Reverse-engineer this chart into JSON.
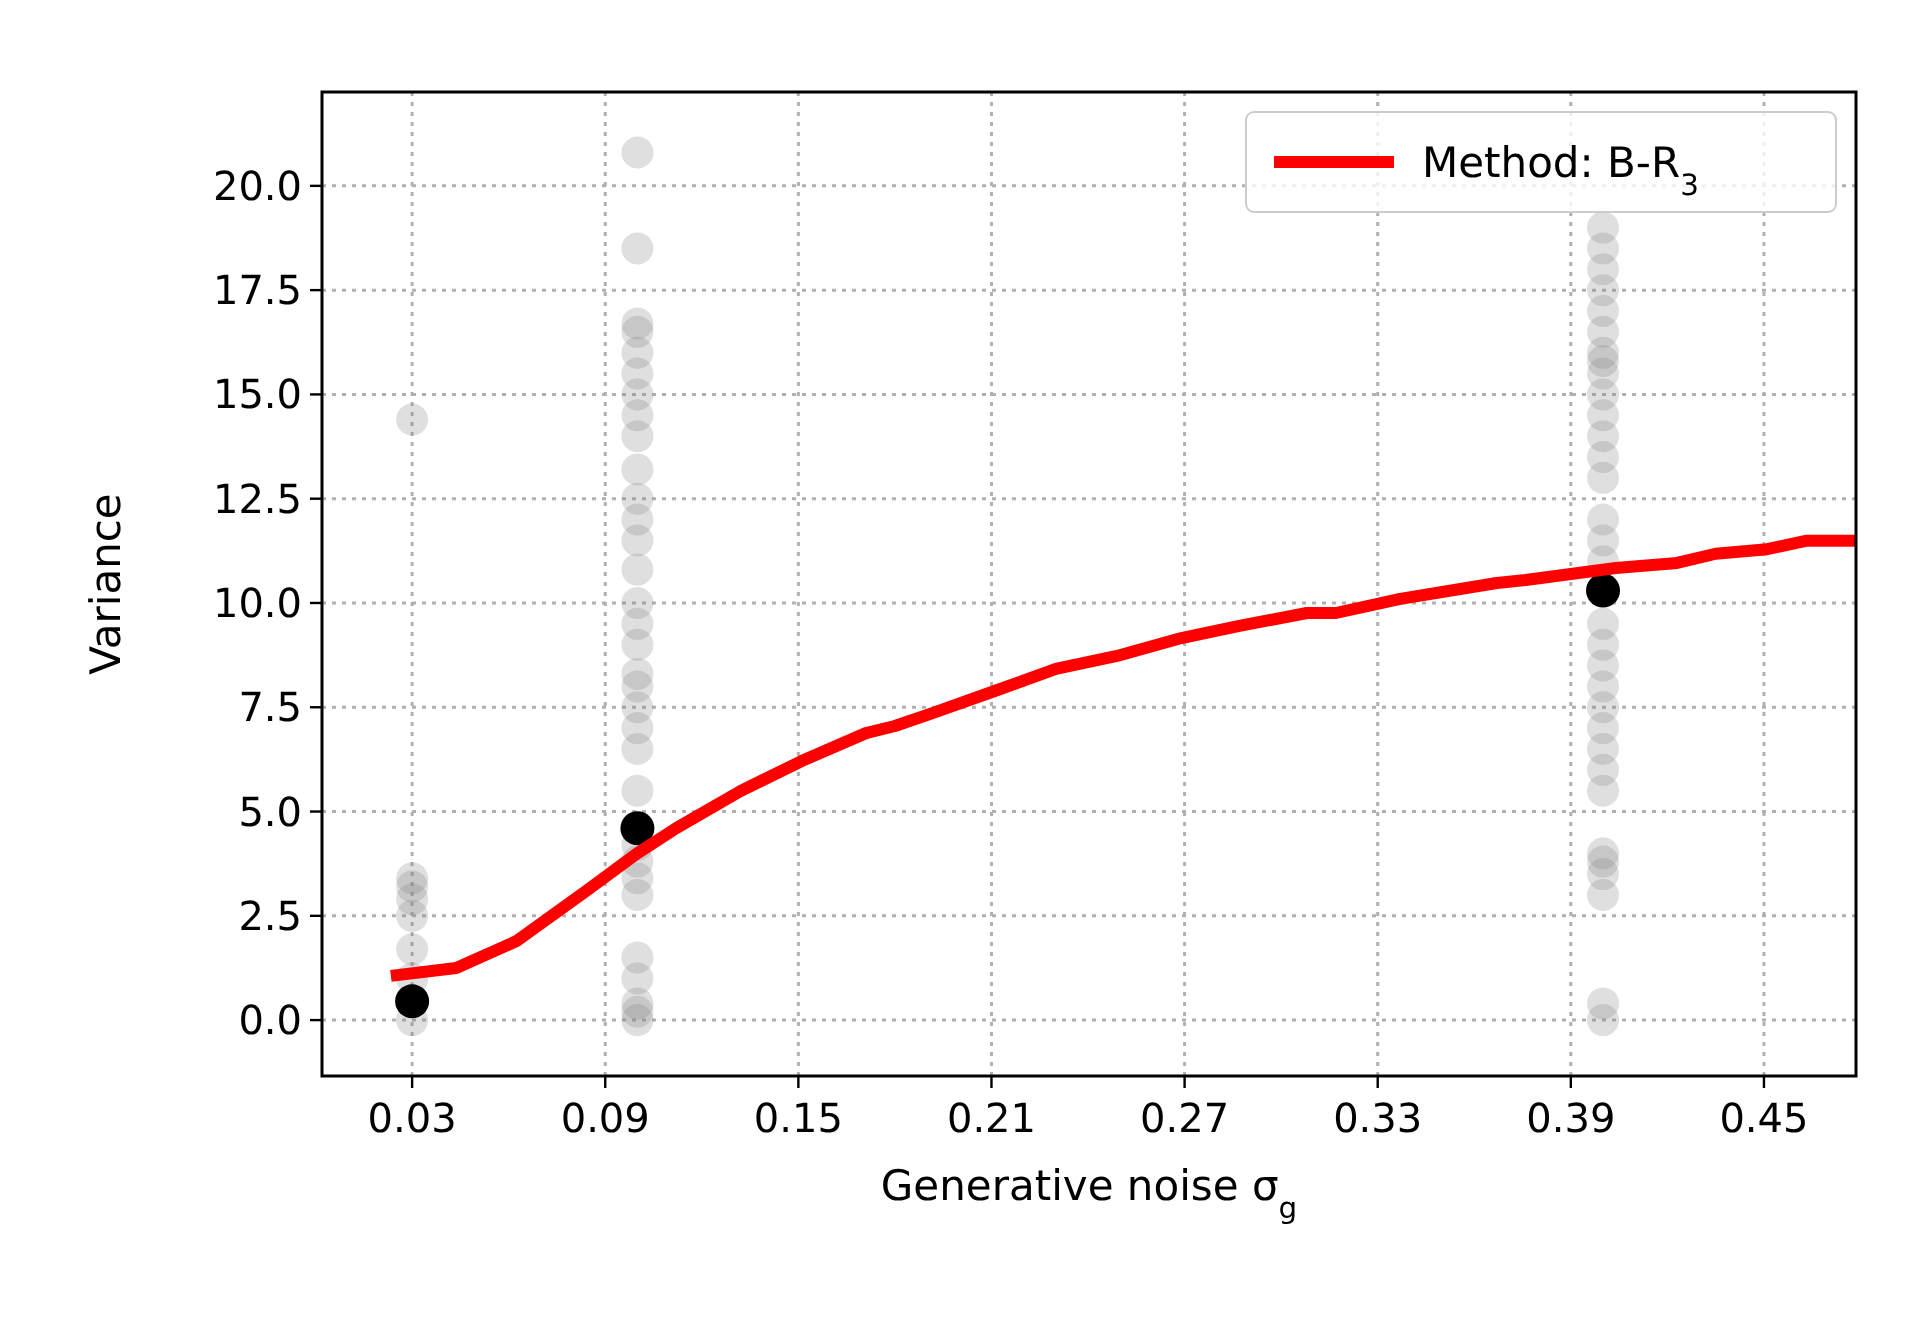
{
  "chart_data": {
    "type": "scatter",
    "xlabel": "Generative noise σ$_{g}$",
    "ylabel": "Variance",
    "xlim": [
      0.002,
      0.4786
    ],
    "ylim": [
      -1.34,
      22.25
    ],
    "xticks": [
      0.03,
      0.09,
      0.15,
      0.21,
      0.27,
      0.33,
      0.39,
      0.45
    ],
    "yticks": [
      {
        "value": 0,
        "label": "0.0"
      },
      {
        "value": 2.5,
        "label": "2.5"
      },
      {
        "value": 5,
        "label": "5.0"
      },
      {
        "value": 7.5,
        "label": "7.5"
      },
      {
        "value": 10,
        "label": "10.0"
      },
      {
        "value": 12.5,
        "label": "12.5"
      },
      {
        "value": 15,
        "label": "15.0"
      },
      {
        "value": 17.5,
        "label": "17.5"
      },
      {
        "value": 20,
        "label": "20.0"
      }
    ],
    "grid": true,
    "legend": "top right",
    "marker": "circle",
    "series": [
      {
        "color": "#808080",
        "x": [
          0.03,
          0.03,
          0.03,
          0.03,
          0.03,
          0.03,
          0.03,
          0.03,
          0.1,
          0.1,
          0.1,
          0.1,
          0.1,
          0.1,
          0.1,
          0.1,
          0.1,
          0.1,
          0.1,
          0.1,
          0.1,
          0.1,
          0.1,
          0.1,
          0.1,
          0.1,
          0.1,
          0.1,
          0.1,
          0.1,
          0.1,
          0.1,
          0.1,
          0.1,
          0.1,
          0.1,
          0.1,
          0.1,
          0.1,
          0.1,
          0.4,
          0.4,
          0.4,
          0.4,
          0.4,
          0.4,
          0.4,
          0.4,
          0.4,
          0.4,
          0.4,
          0.4,
          0.4,
          0.4,
          0.4,
          0.4,
          0.4,
          0.4,
          0.4,
          0.4,
          0.4,
          0.4,
          0.4,
          0.4,
          0.4,
          0.4,
          0.4,
          0.4,
          0.4,
          0.4,
          0.4,
          0.4
        ],
        "values": [
          0,
          1,
          1.7,
          2.5,
          2.9,
          3.2,
          3.4,
          14.4,
          0,
          0.2,
          0.4,
          1,
          1.5,
          3,
          3.4,
          3.8,
          4.2,
          5.5,
          6.5,
          7,
          7.5,
          8,
          8.3,
          9,
          9.5,
          10,
          10.8,
          11.5,
          12,
          12.5,
          13.2,
          14,
          14.5,
          15,
          15.5,
          16,
          16.5,
          16.7,
          18.5,
          20.8,
          0,
          0.4,
          3,
          3.5,
          3.8,
          4,
          5.5,
          6,
          6.5,
          7,
          7.5,
          8,
          8.5,
          9,
          9.5,
          11,
          11.5,
          12,
          13,
          13.5,
          14,
          14.5,
          15,
          15.5,
          16,
          16.5,
          17,
          17.5,
          18,
          18.5,
          19,
          15.8
        ]
      },
      {
        "color": "#000000",
        "x": [
          0.03,
          0.1,
          0.4
        ],
        "values": [
          0.45,
          4.6,
          10.3
        ]
      },
      {
        "type": "line",
        "name": "Method: B-R$_{3}$",
        "color": "#ff0000",
        "marker": "none",
        "line_style": "solid",
        "x": [
          0.0234,
          0.0437,
          0.0623,
          0.084,
          0.0996,
          0.112,
          0.132,
          0.151,
          0.171,
          0.18,
          0.191,
          0.211,
          0.23,
          0.249,
          0.269,
          0.287,
          0.308,
          0.317,
          0.337,
          0.367,
          0.376,
          0.404,
          0.423,
          0.435,
          0.451,
          0.463,
          0.4786
        ],
        "values": [
          1.06,
          1.25,
          1.89,
          3.09,
          3.98,
          4.6,
          5.49,
          6.21,
          6.88,
          7.05,
          7.34,
          7.89,
          8.42,
          8.73,
          9.16,
          9.45,
          9.76,
          9.76,
          10.1,
          10.48,
          10.55,
          10.84,
          10.96,
          11.18,
          11.29,
          11.49,
          11.49
        ]
      }
    ]
  }
}
